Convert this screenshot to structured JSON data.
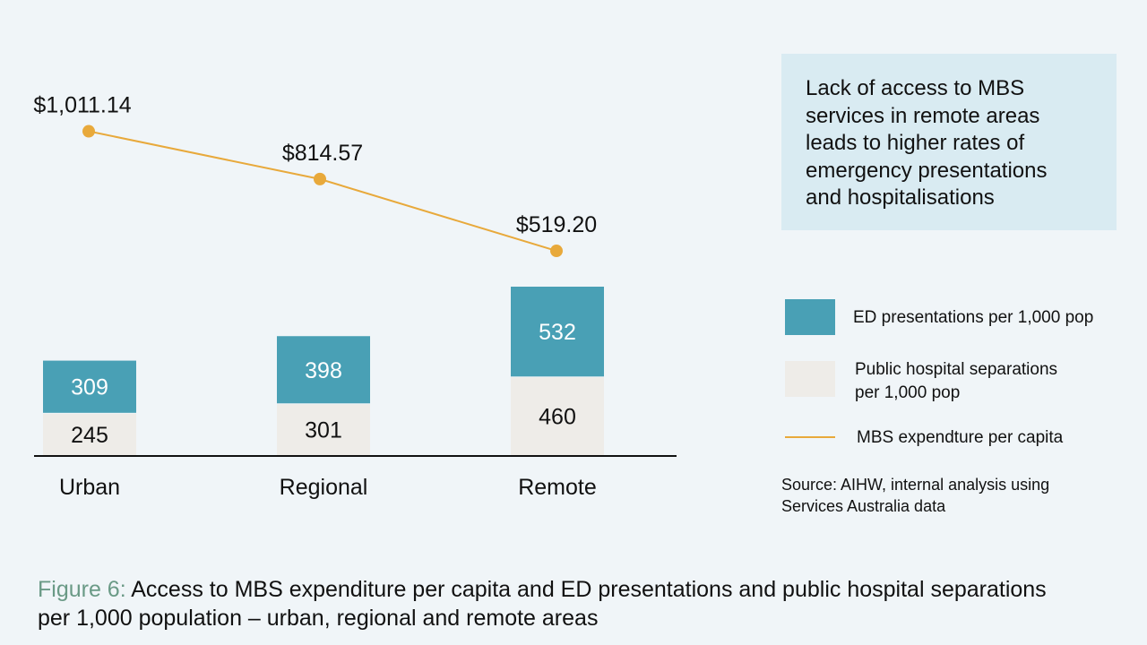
{
  "chart_data": {
    "type": "bar+line",
    "categories": [
      "Urban",
      "Regional",
      "Remote"
    ],
    "series": [
      {
        "name": "Public hospital separations per 1,000 pop",
        "kind": "stacked-bar",
        "color": "#eeece8",
        "values": [
          245,
          301,
          460
        ]
      },
      {
        "name": "ED presentations per 1,000 pop",
        "kind": "stacked-bar",
        "color": "#49a0b5",
        "values": [
          309,
          398,
          532
        ]
      },
      {
        "name": "MBS expendture per capita",
        "kind": "line",
        "color": "#e8a93b",
        "values": [
          1011.14,
          814.57,
          519.2
        ]
      }
    ],
    "line_labels": [
      "$1,011.14",
      "$814.57",
      "$519.20"
    ],
    "bar_axis_ylim": [
      0,
      1200
    ],
    "line_axis_ylim": [
      0,
      1400
    ],
    "grid": false
  },
  "callout": {
    "lines": [
      "Lack of access to MBS",
      "services in remote areas",
      "leads to higher rates of",
      "emergency presentations",
      "and hospitalisations"
    ]
  },
  "legend": {
    "ed": {
      "label": "ED presentations per 1,000 pop",
      "color": "#49a0b5"
    },
    "separations": {
      "line1": "Public hospital separations",
      "line2": "per 1,000 pop",
      "color": "#eeece8"
    },
    "mbs": {
      "label": "MBS expendture per capita",
      "color": "#e8a93b"
    }
  },
  "source": {
    "line1": "Source: AIHW, internal analysis using",
    "line2": "Services Australia data"
  },
  "caption": {
    "figure_label": "Figure 6:",
    "line1": "Access to MBS expenditure per capita and ED presentations and public hospital separations",
    "line2": "per 1,000 population – urban, regional and remote areas"
  }
}
